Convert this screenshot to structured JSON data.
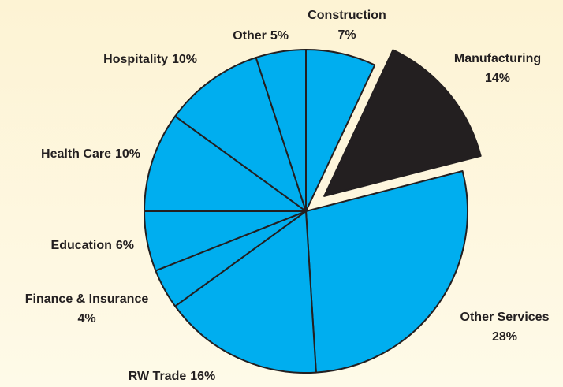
{
  "chart_data": {
    "type": "pie",
    "categories": [
      "Construction",
      "Manufacturing",
      "Other Services",
      "RW Trade",
      "Finance & Insurance",
      "Education",
      "Health Care",
      "Hospitality",
      "Other"
    ],
    "values": [
      7,
      14,
      28,
      16,
      4,
      6,
      10,
      10,
      5
    ],
    "value_labels": [
      "7%",
      "14%",
      "28%",
      "16%",
      "4%",
      "6%",
      "10%",
      "10%",
      "5%"
    ],
    "colors": [
      "#00aeef",
      "#231f20",
      "#00aeef",
      "#00aeef",
      "#00aeef",
      "#00aeef",
      "#00aeef",
      "#00aeef",
      "#00aeef"
    ],
    "explode": [
      false,
      true,
      false,
      false,
      false,
      false,
      false,
      false,
      false
    ]
  }
}
